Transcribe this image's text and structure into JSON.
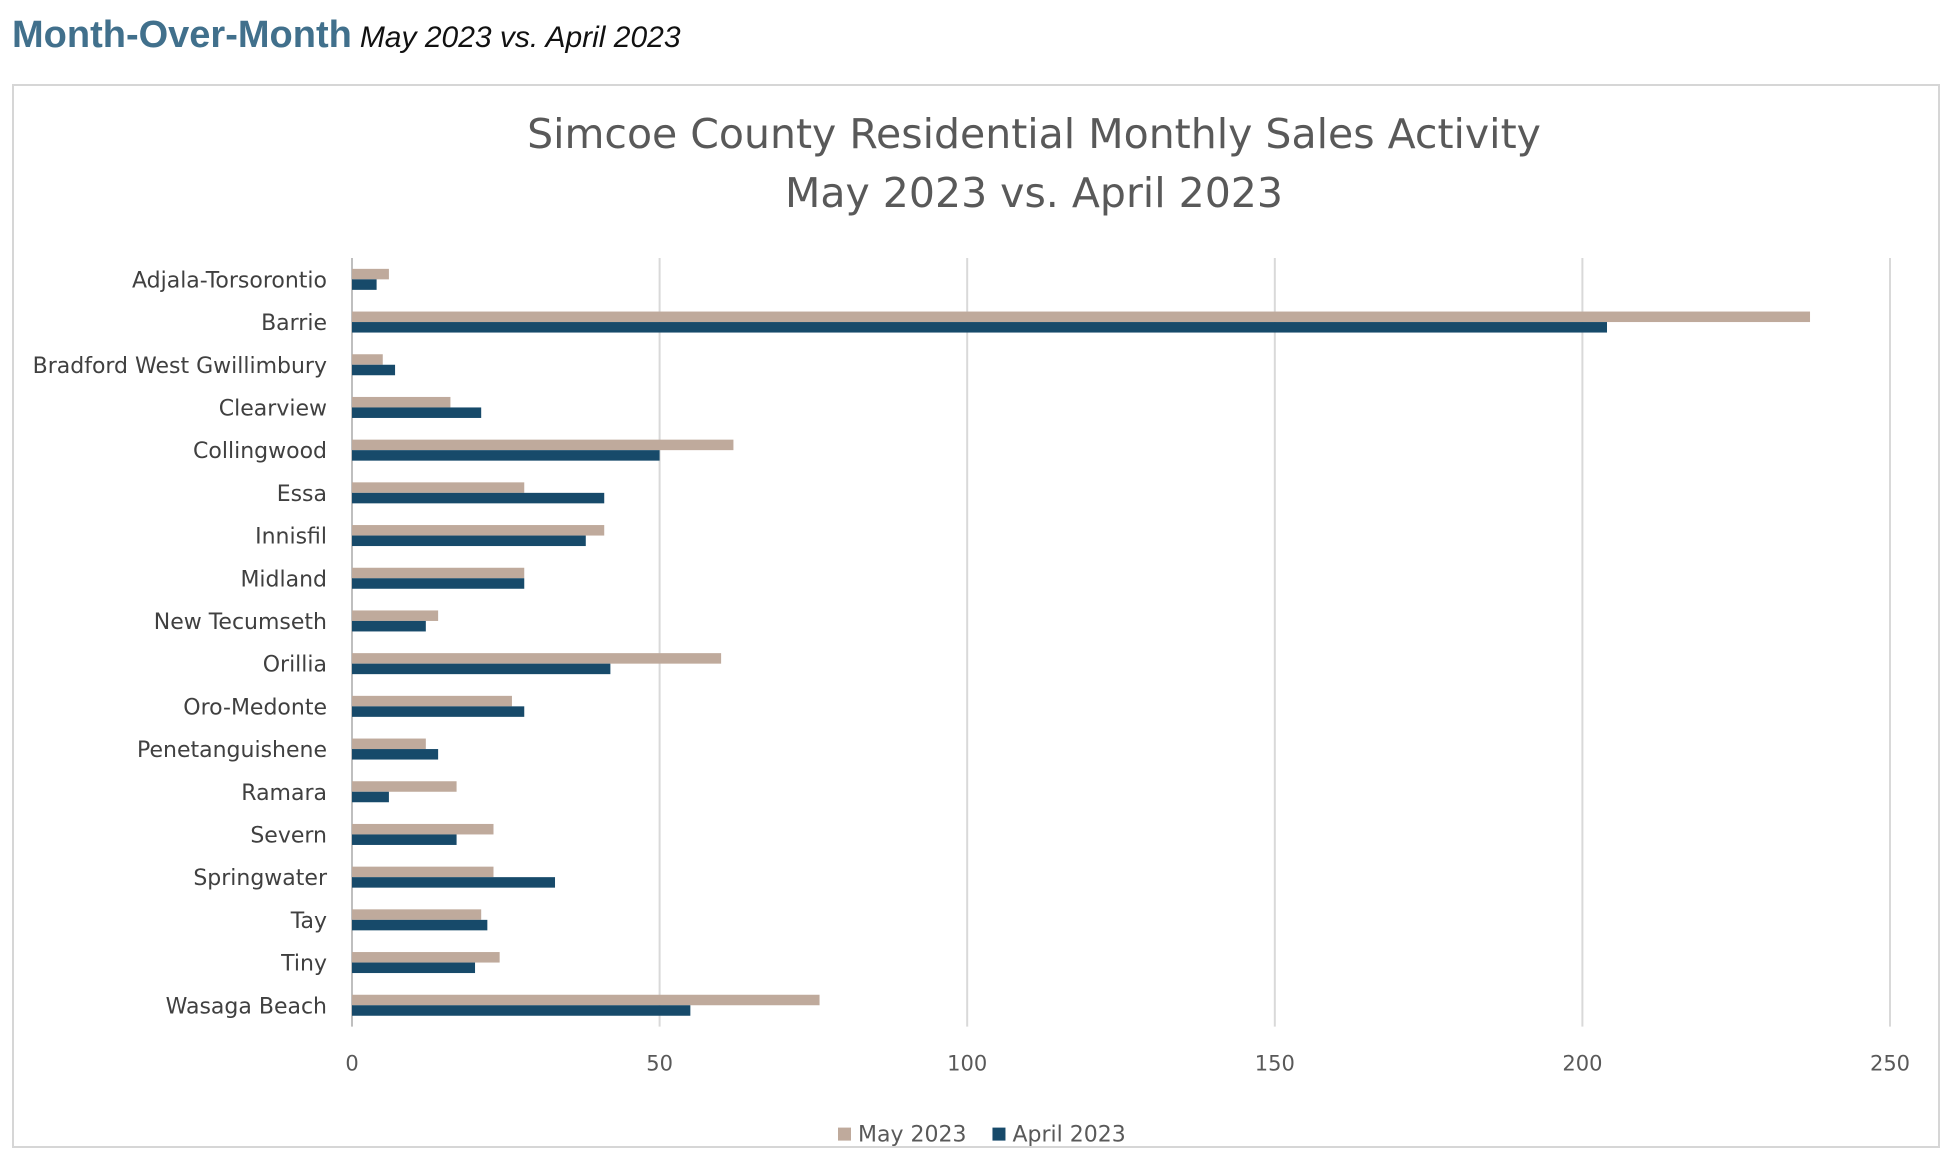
{
  "header": {
    "title": "Month-Over-Month",
    "subtitle": "May 2023 vs. April 2023"
  },
  "chart_data": {
    "type": "bar",
    "orientation": "horizontal",
    "title": "Simcoe County Residential Monthly Sales Activity",
    "subtitle": "May 2023 vs. April 2023",
    "categories": [
      "Adjala-Torsorontio",
      "Barrie",
      "Bradford West Gwillimbury",
      "Clearview",
      "Collingwood",
      "Essa",
      "Innisfil",
      "Midland",
      "New Tecumseth",
      "Orillia",
      "Oro-Medonte",
      "Penetanguishene",
      "Ramara",
      "Severn",
      "Springwater",
      "Tay",
      "Tiny",
      "Wasaga Beach"
    ],
    "series": [
      {
        "name": "May 2023",
        "color": "#bfaa9c",
        "values": [
          6,
          237,
          5,
          16,
          62,
          28,
          41,
          28,
          14,
          60,
          26,
          12,
          17,
          23,
          23,
          21,
          24,
          76
        ]
      },
      {
        "name": "April 2023",
        "color": "#174a6a",
        "values": [
          4,
          204,
          7,
          21,
          50,
          41,
          38,
          28,
          12,
          42,
          28,
          14,
          6,
          17,
          33,
          22,
          20,
          55
        ]
      }
    ],
    "xlim": [
      0,
      250
    ],
    "xticks": [
      "0",
      "50",
      "100",
      "150",
      "200",
      "250"
    ],
    "grid": true,
    "legend_position": "bottom"
  }
}
